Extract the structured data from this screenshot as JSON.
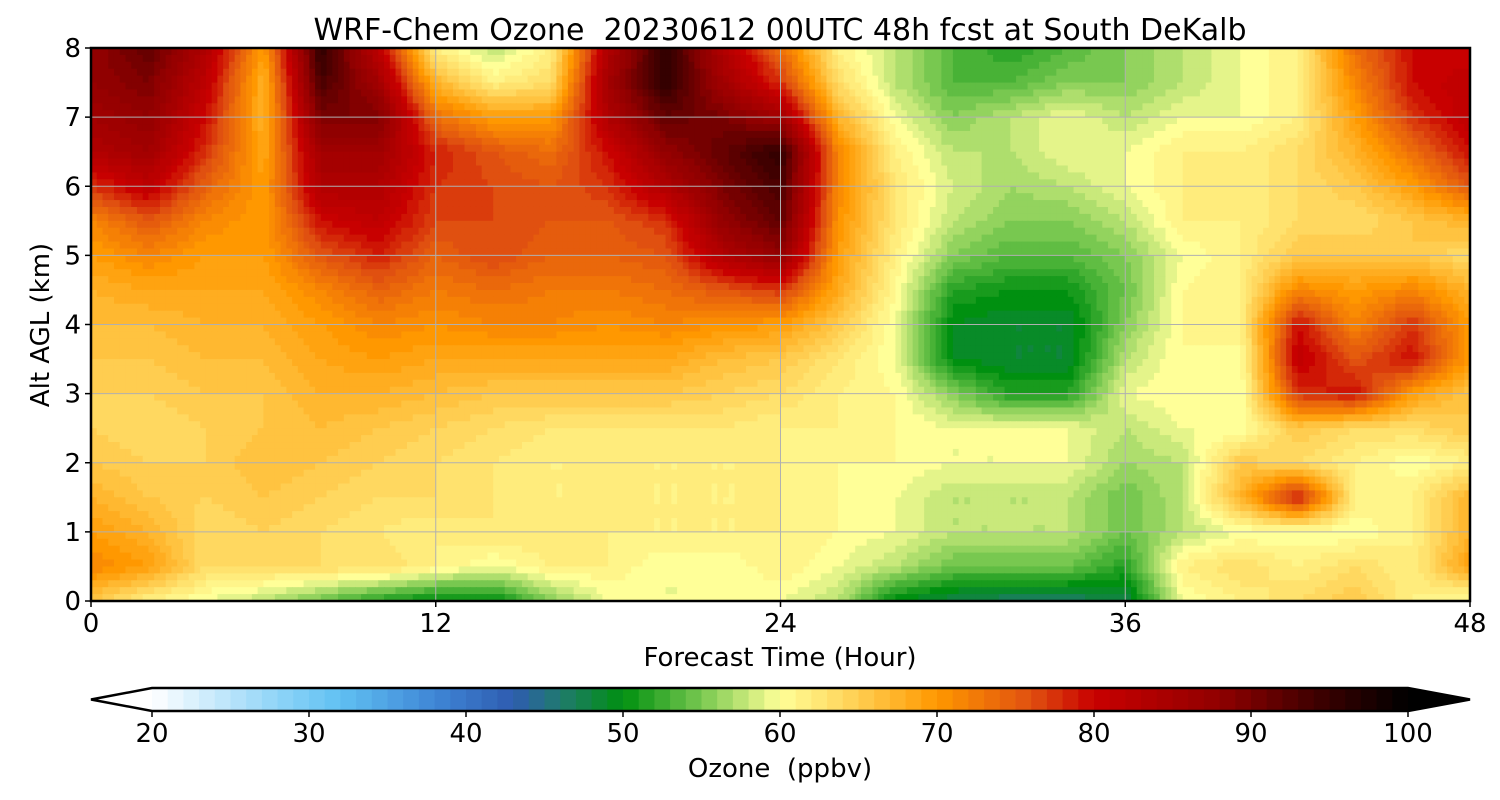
{
  "chart_data": {
    "type": "heatmap",
    "title": "WRF-Chem Ozone  20230612 00UTC 48h fcst at South DeKalb",
    "xlabel": "Forecast Time (Hour)",
    "ylabel": "Alt AGL (km)",
    "xlim": [
      0,
      48
    ],
    "ylim": [
      0,
      8
    ],
    "x_ticks": [
      "0",
      "12",
      "24",
      "36",
      "48"
    ],
    "y_ticks": [
      "0",
      "1",
      "2",
      "3",
      "4",
      "5",
      "6",
      "7",
      "8"
    ],
    "grid": true,
    "colorbar": {
      "label": "Ozone  (ppbv)",
      "range": [
        20,
        100
      ],
      "ticks": [
        "20",
        "30",
        "40",
        "50",
        "60",
        "70",
        "80",
        "90",
        "100"
      ],
      "extend": "both",
      "orientation": "horizontal",
      "stops": [
        [
          20,
          "#ffffff"
        ],
        [
          28,
          "#8fd4f8"
        ],
        [
          32,
          "#60c0f2"
        ],
        [
          38,
          "#3f86d6"
        ],
        [
          43,
          "#2e5cb0"
        ],
        [
          46,
          "#207a6e"
        ],
        [
          50,
          "#009010"
        ],
        [
          55,
          "#78c850"
        ],
        [
          60,
          "#ffff98"
        ],
        [
          64,
          "#ffd860"
        ],
        [
          70,
          "#ff9800"
        ],
        [
          76,
          "#e05010"
        ],
        [
          80,
          "#c80000"
        ],
        [
          88,
          "#900000"
        ],
        [
          94,
          "#400000"
        ],
        [
          100,
          "#000000"
        ]
      ]
    },
    "x": [
      0,
      2,
      4,
      6,
      8,
      10,
      12,
      14,
      16,
      18,
      20,
      22,
      24,
      26,
      28,
      30,
      32,
      34,
      36,
      38,
      40,
      42,
      44,
      46,
      48
    ],
    "y": [
      0,
      0.5,
      1,
      1.5,
      2,
      2.5,
      3,
      3.5,
      4,
      4.5,
      5,
      5.5,
      6,
      6.5,
      7,
      7.5,
      8
    ],
    "z": [
      [
        66,
        62,
        60,
        58,
        55,
        52,
        50,
        50,
        56,
        60,
        60,
        60,
        60,
        58,
        50,
        48,
        47,
        47,
        48,
        60,
        62,
        64,
        66,
        62,
        60
      ],
      [
        72,
        70,
        64,
        64,
        64,
        64,
        62,
        60,
        62,
        62,
        60,
        60,
        62,
        60,
        58,
        55,
        55,
        55,
        52,
        62,
        64,
        62,
        64,
        62,
        70
      ],
      [
        70,
        68,
        64,
        65,
        64,
        63,
        62,
        63,
        63,
        62,
        62,
        62,
        62,
        61,
        60,
        58,
        58,
        58,
        55,
        58,
        60,
        60,
        60,
        62,
        68
      ],
      [
        68,
        66,
        65,
        66,
        65,
        64,
        64,
        63,
        62,
        62,
        62,
        62,
        62,
        61,
        60,
        58,
        58,
        58,
        55,
        58,
        68,
        80,
        62,
        62,
        68
      ],
      [
        66,
        65,
        65,
        67,
        66,
        65,
        64,
        63,
        62,
        62,
        62,
        62,
        62,
        61,
        61,
        60,
        60,
        60,
        57,
        58,
        66,
        64,
        62,
        60,
        62
      ],
      [
        65,
        64,
        65,
        66,
        67,
        66,
        65,
        64,
        63,
        63,
        63,
        63,
        62,
        62,
        61,
        60,
        60,
        60,
        58,
        60,
        60,
        66,
        64,
        64,
        66
      ],
      [
        65,
        65,
        66,
        66,
        68,
        68,
        67,
        66,
        66,
        66,
        66,
        65,
        64,
        62,
        61,
        56,
        52,
        52,
        60,
        61,
        60,
        78,
        80,
        70,
        66
      ],
      [
        66,
        66,
        67,
        67,
        69,
        70,
        69,
        69,
        69,
        69,
        69,
        67,
        66,
        63,
        60,
        50,
        49,
        49,
        58,
        61,
        60,
        82,
        76,
        80,
        70
      ],
      [
        67,
        67,
        68,
        68,
        70,
        72,
        71,
        72,
        72,
        71,
        72,
        71,
        70,
        66,
        60,
        50,
        49,
        49,
        56,
        61,
        62,
        80,
        72,
        78,
        70
      ],
      [
        68,
        69,
        69,
        69,
        72,
        75,
        73,
        74,
        73,
        73,
        74,
        76,
        78,
        69,
        61,
        52,
        51,
        51,
        55,
        61,
        62,
        72,
        70,
        72,
        68
      ],
      [
        70,
        72,
        70,
        70,
        76,
        79,
        75,
        77,
        75,
        75,
        76,
        84,
        88,
        70,
        62,
        56,
        54,
        54,
        56,
        60,
        62,
        66,
        66,
        66,
        64
      ],
      [
        72,
        76,
        72,
        70,
        80,
        82,
        77,
        77,
        76,
        76,
        78,
        88,
        92,
        71,
        63,
        58,
        56,
        56,
        58,
        62,
        62,
        64,
        64,
        66,
        68
      ],
      [
        78,
        82,
        75,
        70,
        84,
        84,
        78,
        77,
        76,
        78,
        84,
        90,
        94,
        72,
        63,
        59,
        57,
        58,
        60,
        62,
        62,
        64,
        66,
        70,
        76
      ],
      [
        84,
        86,
        78,
        69,
        86,
        86,
        79,
        76,
        74,
        80,
        88,
        92,
        96,
        72,
        62,
        58,
        58,
        60,
        60,
        62,
        62,
        64,
        68,
        74,
        80
      ],
      [
        86,
        88,
        80,
        68,
        90,
        90,
        74,
        70,
        70,
        84,
        92,
        90,
        86,
        68,
        60,
        56,
        58,
        60,
        58,
        60,
        60,
        62,
        70,
        78,
        82
      ],
      [
        88,
        90,
        82,
        68,
        94,
        86,
        68,
        62,
        64,
        86,
        96,
        86,
        78,
        64,
        58,
        54,
        54,
        56,
        56,
        58,
        60,
        62,
        72,
        80,
        82
      ],
      [
        88,
        92,
        84,
        70,
        96,
        82,
        62,
        58,
        62,
        84,
        96,
        84,
        74,
        62,
        58,
        54,
        52,
        54,
        56,
        58,
        60,
        62,
        74,
        80,
        80
      ]
    ]
  }
}
